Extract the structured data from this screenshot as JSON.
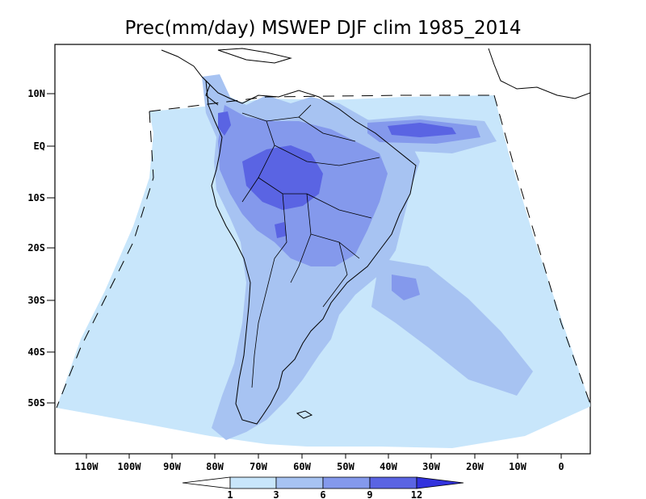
{
  "title": "Prec(mm/day) MSWEP DJF clim 1985_2014",
  "lat_labels": [
    "10N",
    "EQ",
    "10S",
    "20S",
    "30S",
    "40S",
    "50S"
  ],
  "lon_labels": [
    "110W",
    "100W",
    "90W",
    "80W",
    "70W",
    "60W",
    "50W",
    "40W",
    "30W",
    "20W",
    "10W",
    "0"
  ],
  "colorbar": {
    "labels": [
      "1",
      "3",
      "6",
      "9",
      "12"
    ],
    "colors": [
      "#ffffff",
      "#c8e6fb",
      "#a7c3f2",
      "#8499ec",
      "#5a64e3",
      "#3232dd"
    ]
  },
  "colors": {
    "frame": "#000000",
    "land_line": "#000000"
  }
}
